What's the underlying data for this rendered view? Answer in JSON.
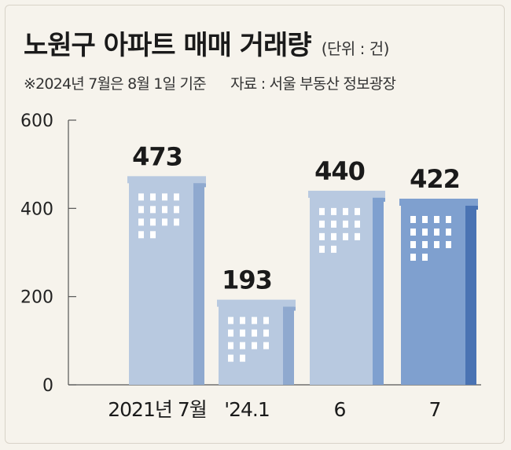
{
  "header": {
    "title": "노원구 아파트 매매 거래량",
    "unit": "(단위 : 건)",
    "note": "※2024년 7월은 8월 1일 기준",
    "source": "자료 : 서울 부동산 정보광장"
  },
  "colors": {
    "bar_light": "#b8c9e0",
    "bar_light_side": "#8fa9cf",
    "bar_mid": "#7fa0cf",
    "bar_dark": "#4a73b3",
    "window": "#ffffff",
    "axis": "#555555"
  },
  "chart_data": {
    "type": "bar",
    "categories": [
      "2021년 7월",
      "'24.1",
      "6",
      "7"
    ],
    "values": [
      473,
      193,
      440,
      422
    ],
    "data_labels": [
      "473",
      "193",
      "440",
      "422"
    ],
    "yticks": [
      0,
      200,
      400,
      600
    ],
    "ylim": [
      0,
      600
    ],
    "grid": false
  }
}
